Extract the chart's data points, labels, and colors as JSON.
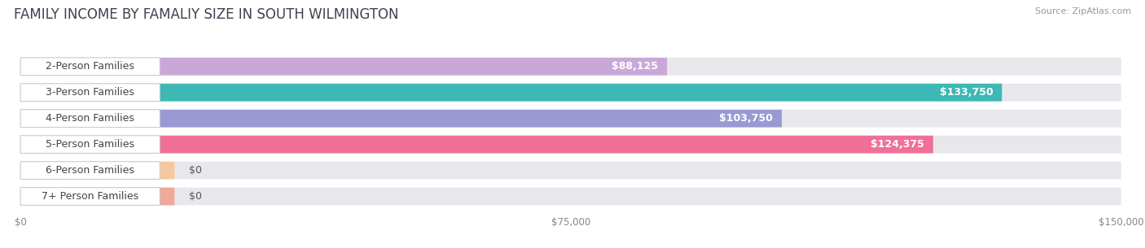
{
  "title": "FAMILY INCOME BY FAMALIY SIZE IN SOUTH WILMINGTON",
  "source": "Source: ZipAtlas.com",
  "categories": [
    "2-Person Families",
    "3-Person Families",
    "4-Person Families",
    "5-Person Families",
    "6-Person Families",
    "7+ Person Families"
  ],
  "values": [
    88125,
    133750,
    103750,
    124375,
    0,
    0
  ],
  "bar_colors": [
    "#c9a8d8",
    "#3db8b4",
    "#9b99d4",
    "#f07098",
    "#f5c8a0",
    "#f0a898"
  ],
  "bar_zero_colors": [
    "#f5c8a0",
    "#f0a898"
  ],
  "xlim": [
    0,
    150000
  ],
  "xtick_labels": [
    "$0",
    "$75,000",
    "$150,000"
  ],
  "xtick_values": [
    0,
    75000,
    150000
  ],
  "bg_color": "#ffffff",
  "bar_bg_color": "#e8e8e8",
  "bar_bg_color2": "#f0f0f0",
  "title_fontsize": 12,
  "source_fontsize": 8,
  "label_fontsize": 9,
  "value_fontsize": 9,
  "figsize": [
    14.06,
    3.05
  ],
  "dpi": 100
}
